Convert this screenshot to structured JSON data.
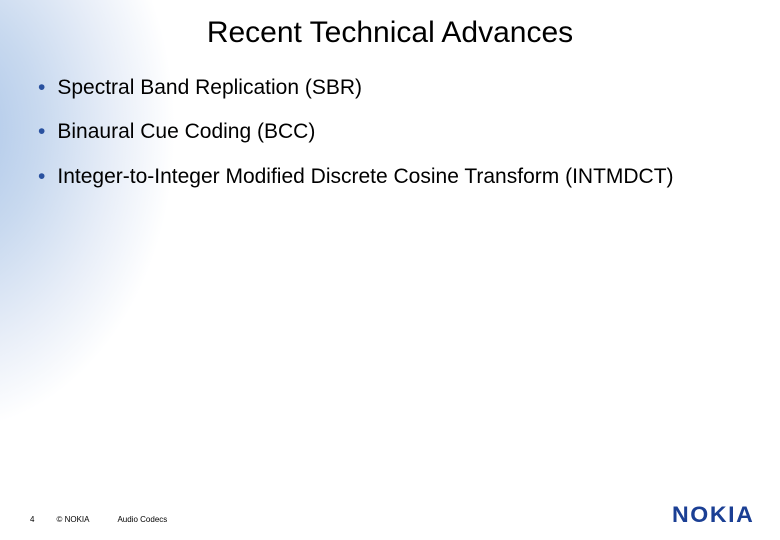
{
  "slide": {
    "title": "Recent Technical Advances",
    "bullets": [
      "Spectral Band Replication (SBR)",
      "Binaural Cue Coding (BCC)",
      "Integer-to-Integer Modified Discrete Cosine Transform (INTMDCT)"
    ]
  },
  "footer": {
    "page_number": "4",
    "copyright": "© NOKIA",
    "subject": "Audio Codecs"
  },
  "logo": {
    "text": "NOKIA",
    "color": "#1b3f94"
  },
  "style": {
    "title_fontsize": 30,
    "title_color": "#000000",
    "bullet_fontsize": 21,
    "bullet_text_color": "#000000",
    "bullet_dot_color": "#29519f",
    "footer_fontsize": 8,
    "background_color": "#ffffff",
    "gradient_colors": [
      "#a9c4e8",
      "#c8d9ef",
      "#e8eef8",
      "#ffffff"
    ],
    "logo_fontsize": 22
  }
}
